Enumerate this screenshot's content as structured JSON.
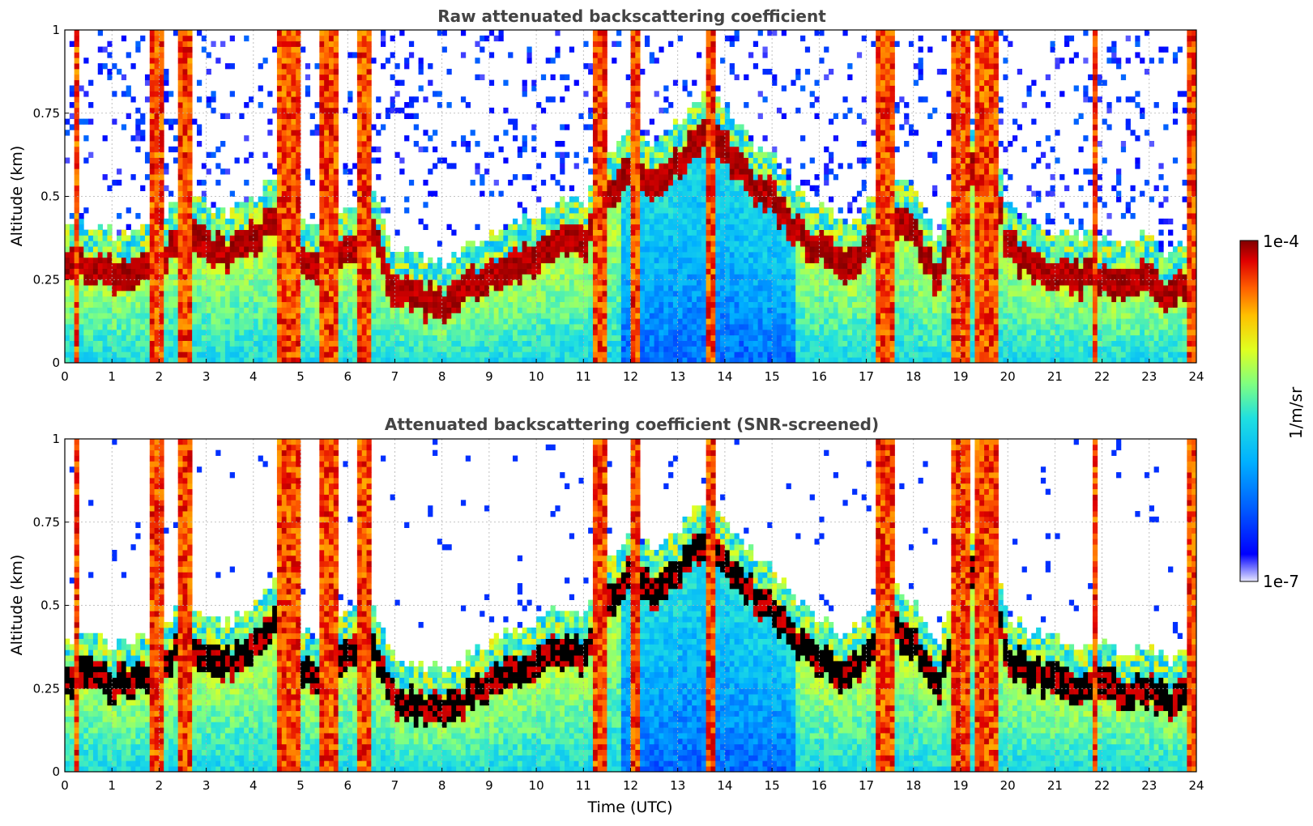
{
  "chart_data": [
    {
      "type": "heatmap",
      "title": "Raw attenuated backscattering coefficient",
      "xlabel": "",
      "ylabel": "Altitude (km)",
      "xlim": [
        0,
        24
      ],
      "ylim": [
        0,
        1
      ],
      "xticks": [
        "0",
        "1",
        "2",
        "3",
        "4",
        "5",
        "6",
        "7",
        "8",
        "9",
        "10",
        "11",
        "12",
        "13",
        "14",
        "15",
        "16",
        "17",
        "18",
        "19",
        "20",
        "21",
        "22",
        "23",
        "24"
      ],
      "yticks": [
        "0",
        "0.25",
        "0.5",
        "0.75",
        "1"
      ],
      "grid": true,
      "boundary_layer_top_km": {
        "time_h": [
          0,
          0.5,
          1,
          1.5,
          2,
          2.5,
          3,
          3.5,
          4,
          4.5,
          5,
          5.5,
          6,
          6.5,
          7,
          7.5,
          8,
          8.5,
          9,
          9.5,
          10,
          10.5,
          11,
          11.5,
          12,
          12.5,
          13,
          13.5,
          14,
          14.5,
          15,
          15.5,
          16,
          16.5,
          17,
          17.5,
          18,
          18.5,
          19,
          19.5,
          20,
          20.5,
          21,
          21.5,
          22,
          22.5,
          23,
          23.5,
          24
        ],
        "altitude_km": [
          0.28,
          0.3,
          0.27,
          0.28,
          0.29,
          0.4,
          0.35,
          0.33,
          0.38,
          0.45,
          0.3,
          0.28,
          0.35,
          0.4,
          0.22,
          0.2,
          0.18,
          0.22,
          0.28,
          0.3,
          0.32,
          0.38,
          0.35,
          0.5,
          0.6,
          0.55,
          0.6,
          0.7,
          0.65,
          0.55,
          0.5,
          0.4,
          0.35,
          0.3,
          0.35,
          0.45,
          0.4,
          0.25,
          0.5,
          0.7,
          0.35,
          0.3,
          0.28,
          0.25,
          0.27,
          0.24,
          0.26,
          0.2,
          0.3
        ]
      }
    },
    {
      "type": "heatmap",
      "title": "Attenuated backscattering coefficient (SNR-screened)",
      "xlabel": "Time (UTC)",
      "ylabel": "Altitude (km)",
      "xlim": [
        0,
        24
      ],
      "ylim": [
        0,
        1
      ],
      "xticks": [
        "0",
        "1",
        "2",
        "3",
        "4",
        "5",
        "6",
        "7",
        "8",
        "9",
        "10",
        "11",
        "12",
        "13",
        "14",
        "15",
        "16",
        "17",
        "18",
        "19",
        "20",
        "21",
        "22",
        "23",
        "24"
      ],
      "yticks": [
        "0",
        "0.25",
        "0.5",
        "0.75",
        "1"
      ],
      "grid": true
    }
  ],
  "colorbar": {
    "label": "1/m/sr",
    "min_label": "1e-7",
    "max_label": "1e-4",
    "scale": "log",
    "colormap": [
      "#e8e8ff",
      "#0000ff",
      "#0060ff",
      "#00b0ff",
      "#20e0e0",
      "#80ff80",
      "#e0ff20",
      "#ffc000",
      "#ff6000",
      "#e00000",
      "#800000"
    ]
  }
}
